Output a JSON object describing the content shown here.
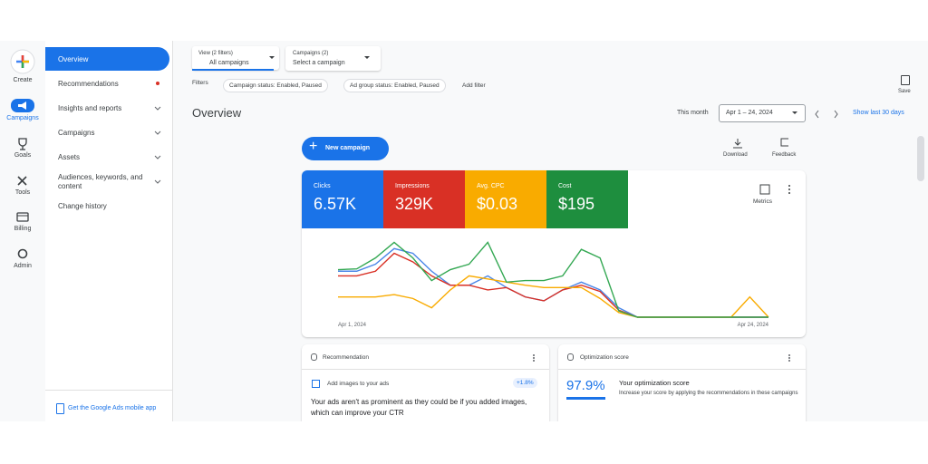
{
  "rail": [
    "Create",
    "Campaigns",
    "Goals",
    "Tools",
    "Billing",
    "Admin"
  ],
  "nav": {
    "items": [
      "Overview",
      "Recommendations",
      "Insights and reports",
      "Campaigns",
      "Assets",
      "Audiences, keywords, and content",
      "Change history"
    ],
    "footer": "Get the Google Ads mobile app"
  },
  "toolbar": {
    "view_label": "View (2 filters)",
    "view_value": "All campaigns",
    "campaigns_label": "Campaigns (2)",
    "campaigns_value": "Select a campaign",
    "save": "Save"
  },
  "filters": {
    "label": "Filters",
    "chips": [
      "Campaign status: Enabled, Paused",
      "Ad group status: Enabled, Paused"
    ],
    "add": "Add filter"
  },
  "header": {
    "title": "Overview",
    "period": "This month",
    "date_range": "Apr 1 – 24, 2024",
    "show_last": "Show last 30 days"
  },
  "actions": {
    "new_campaign": "New campaign",
    "download": "Download",
    "feedback": "Feedback",
    "metrics": "Metrics"
  },
  "scorecards": [
    {
      "label": "Clicks",
      "value": "6.57K",
      "color": "#1a73e8"
    },
    {
      "label": "Impressions",
      "value": "329K",
      "color": "#d93025"
    },
    {
      "label": "Avg. CPC",
      "value": "$0.03",
      "color": "#f9ab00"
    },
    {
      "label": "Cost",
      "value": "$195",
      "color": "#1e8e3e"
    }
  ],
  "chart": {
    "type": "line",
    "x": [
      "Apr 1, 2024",
      null,
      null,
      null,
      null,
      null,
      null,
      null,
      null,
      null,
      null,
      null,
      null,
      null,
      null,
      null,
      null,
      null,
      null,
      null,
      null,
      null,
      null,
      "Apr 24, 2024"
    ],
    "ylim": [
      0,
      100
    ],
    "series": [
      {
        "name": "Clicks",
        "color": "#4a86e8",
        "values": [
          59,
          59,
          68,
          88,
          82,
          59,
          41,
          41,
          53,
          38,
          26,
          21,
          35,
          45,
          35,
          12,
          0,
          0,
          0,
          0,
          0,
          0,
          0,
          0
        ]
      },
      {
        "name": "Impressions",
        "color": "#d93025",
        "values": [
          53,
          53,
          59,
          82,
          71,
          53,
          41,
          41,
          35,
          38,
          26,
          21,
          35,
          41,
          33,
          9,
          0,
          0,
          0,
          0,
          0,
          0,
          0,
          0
        ]
      },
      {
        "name": "Avg. CPC",
        "color": "#f9ab00",
        "values": [
          26,
          26,
          26,
          29,
          24,
          12,
          35,
          53,
          49,
          45,
          41,
          38,
          38,
          38,
          24,
          6,
          0,
          0,
          0,
          0,
          0,
          0,
          26,
          0
        ]
      },
      {
        "name": "Cost",
        "color": "#34a853",
        "values": [
          61,
          62,
          76,
          96,
          76,
          47,
          61,
          68,
          96,
          45,
          47,
          47,
          53,
          87,
          76,
          8,
          0,
          0,
          0,
          0,
          0,
          0,
          0,
          0
        ]
      }
    ]
  },
  "cards": {
    "recommendation": {
      "title": "Recommendation",
      "item": "Add images to your ads",
      "badge": "+1.8%",
      "body": "Your ads aren't as prominent as they could be if you added images, which can improve your CTR"
    },
    "optimization": {
      "title": "Optimization score",
      "score": "97.9%",
      "heading": "Your optimization score",
      "body": "Increase your score by applying the recommendations in these campaigns"
    }
  }
}
